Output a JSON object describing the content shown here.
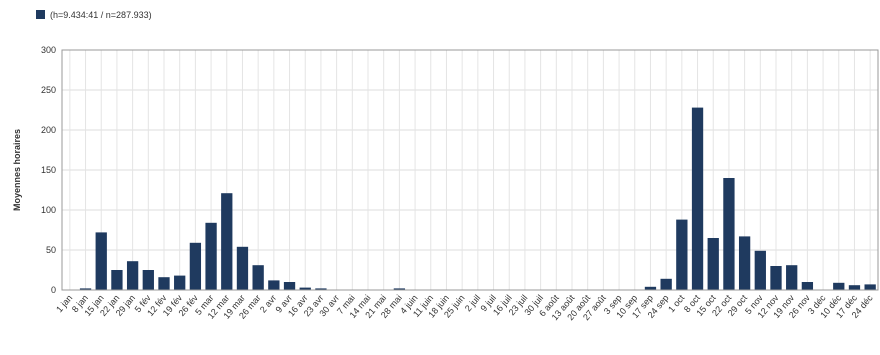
{
  "chart_data": {
    "type": "bar",
    "legend_label": "(h=9.434:41 / n=287.933)",
    "ylabel": "Moyennes horaires",
    "color": "#1f3a5f",
    "grid": true,
    "ylim": [
      0,
      300
    ],
    "yticks": [
      0,
      50,
      100,
      150,
      200,
      250,
      300
    ],
    "categories": [
      "1 jan",
      "8 jan",
      "15 jan",
      "22 jan",
      "29 jan",
      "5 fév",
      "12 fév",
      "19 fév",
      "26 fév",
      "5 mar",
      "12 mar",
      "19 mar",
      "26 mar",
      "2 avr",
      "9 avr",
      "16 avr",
      "23 avr",
      "30 avr",
      "7 mai",
      "14 mai",
      "21 mai",
      "28 mai",
      "4 juin",
      "11 juin",
      "18 juin",
      "25 juin",
      "2 juil",
      "9 juil",
      "16 juil",
      "23 juil",
      "30 juil",
      "6 août",
      "13 août",
      "20 août",
      "27 août",
      "3 sep",
      "10 sep",
      "17 sep",
      "24 sep",
      "1 oct",
      "8 oct",
      "15 oct",
      "22 oct",
      "29 oct",
      "5 nov",
      "12 nov",
      "19 nov",
      "26 nov",
      "3 déc",
      "10 déc",
      "17 déc",
      "24 déc"
    ],
    "values": [
      0,
      2,
      72,
      25,
      36,
      25,
      16,
      18,
      59,
      84,
      121,
      54,
      31,
      12,
      10,
      3,
      2,
      0,
      0,
      0,
      0,
      2,
      0,
      0,
      0,
      0,
      0,
      0,
      0,
      0,
      0,
      0,
      0,
      0,
      0,
      0,
      0,
      4,
      14,
      88,
      228,
      65,
      140,
      67,
      49,
      30,
      31,
      10,
      0,
      9,
      6,
      7
    ]
  }
}
